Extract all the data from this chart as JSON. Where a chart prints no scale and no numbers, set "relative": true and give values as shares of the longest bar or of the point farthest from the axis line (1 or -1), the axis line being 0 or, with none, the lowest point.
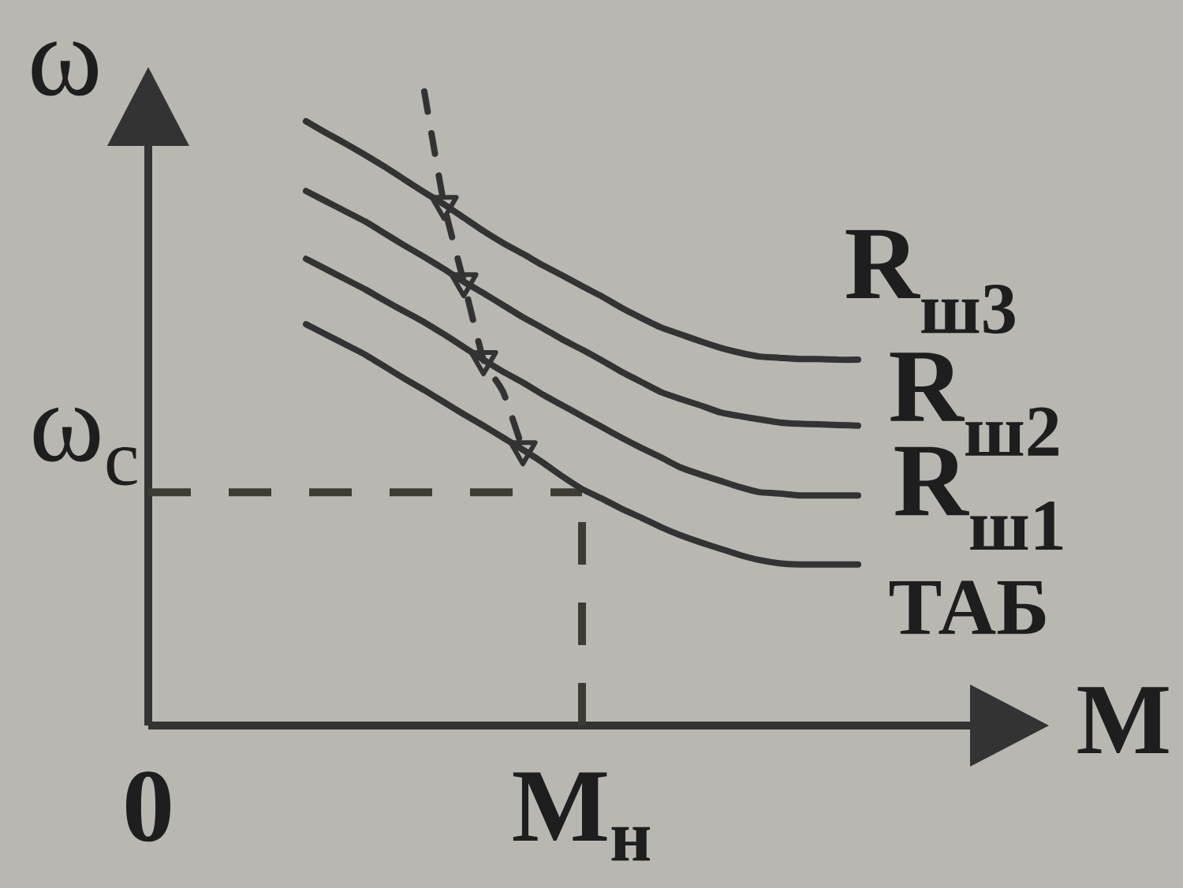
{
  "chart_data": {
    "type": "line",
    "relative": true,
    "xlabel": "M",
    "ylabel": "ω",
    "line_style": "solid",
    "categories": [
      "0",
      null,
      null,
      null,
      null,
      null,
      null,
      null,
      null,
      null,
      null,
      null,
      null,
      null,
      null,
      null,
      null,
      null,
      null,
      null,
      null,
      null,
      "M$_{н}$",
      null,
      null,
      null,
      null,
      null,
      null,
      null,
      null,
      null,
      null,
      null,
      null,
      null,
      null
    ],
    "series": [
      {
        "name": "R$_{ш3}$",
        "color": "#333333",
        "values": [
          null,
          null,
          null,
          null,
          null,
          null,
          null,
          null,
          0.953,
          0.935,
          0.918,
          0.9,
          0.881,
          0.861,
          0.841,
          0.822,
          0.801,
          0.78,
          0.761,
          0.744,
          0.726,
          0.71,
          0.693,
          0.677,
          0.659,
          0.643,
          0.628,
          0.617,
          0.606,
          0.596,
          0.588,
          0.582,
          0.58,
          0.578,
          0.578,
          0.577,
          0.577
        ]
      },
      {
        "name": "R$_{ш2}$",
        "color": "#333333",
        "values": [
          null,
          null,
          null,
          null,
          null,
          null,
          null,
          null,
          0.843,
          0.827,
          0.811,
          0.795,
          0.776,
          0.757,
          0.739,
          0.72,
          0.7,
          0.682,
          0.663,
          0.644,
          0.627,
          0.609,
          0.593,
          0.576,
          0.558,
          0.542,
          0.526,
          0.515,
          0.505,
          0.494,
          0.488,
          0.483,
          0.478,
          0.476,
          0.475,
          0.474,
          0.473
        ]
      },
      {
        "name": "R$_{ш1}$",
        "color": "#333333",
        "values": [
          null,
          null,
          null,
          null,
          null,
          null,
          null,
          null,
          0.736,
          0.72,
          0.704,
          0.688,
          0.67,
          0.653,
          0.636,
          0.617,
          0.597,
          0.577,
          0.558,
          0.541,
          0.522,
          0.505,
          0.488,
          0.471,
          0.454,
          0.438,
          0.423,
          0.407,
          0.396,
          0.386,
          0.376,
          0.368,
          0.366,
          0.363,
          0.363,
          0.363,
          0.363
        ]
      },
      {
        "name": "ТАБ",
        "color": "#333333",
        "values": [
          null,
          null,
          null,
          null,
          null,
          null,
          null,
          null,
          0.633,
          0.617,
          0.601,
          0.585,
          0.566,
          0.547,
          0.529,
          0.51,
          0.491,
          0.473,
          0.454,
          0.435,
          0.415,
          0.393,
          0.373,
          0.358,
          0.342,
          0.328,
          0.313,
          0.3,
          0.289,
          0.279,
          0.269,
          0.261,
          0.256,
          0.254,
          0.254,
          0.254,
          0.254
        ]
      },
      {
        "color": "#333333",
        "line_style": "dashed",
        "marker": "triangle",
        "values": [
          null,
          null,
          null,
          null,
          null,
          null,
          null,
          null,
          null,
          null,
          null,
          null,
          null,
          null,
          1.0,
          0.822,
          0.7,
          0.577,
          0.526,
          0.435,
          null,
          null,
          null,
          null,
          null,
          null,
          null,
          null,
          null,
          null,
          null,
          null,
          null,
          null,
          null,
          null,
          null
        ]
      }
    ],
    "ref_lines": [
      {
        "axis": "y",
        "value": 0.368,
        "label": "ω$_{с}$",
        "line_style": "dashed",
        "color": "#3c3c34"
      },
      {
        "axis": "x",
        "value": "M$_{н}$",
        "line_style": "dashed",
        "color": "#3c3c34"
      }
    ]
  }
}
